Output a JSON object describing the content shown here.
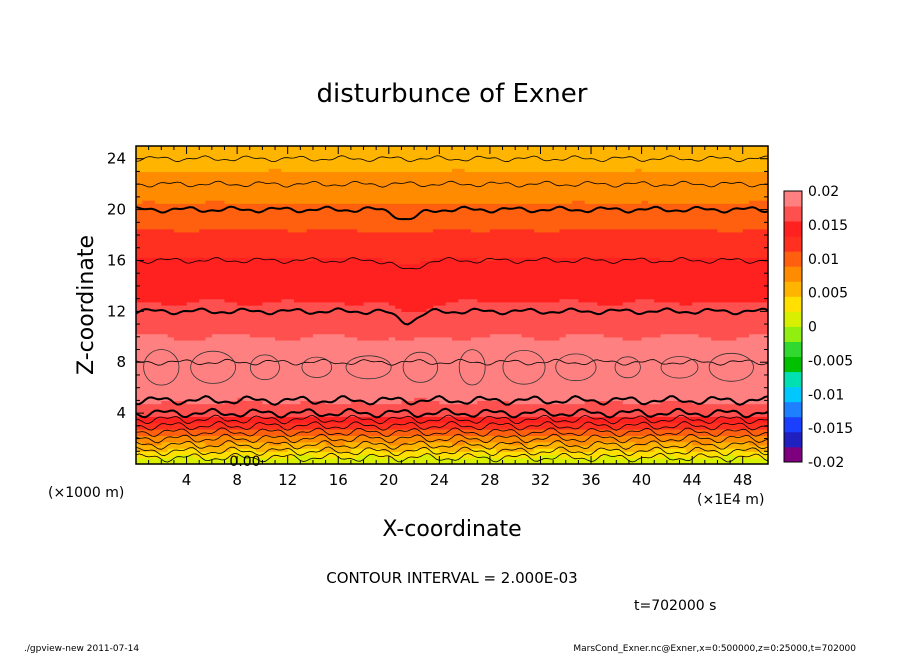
{
  "chart_data": {
    "type": "heatmap",
    "title": "disturbunce of Exner",
    "xlabel": "X-coordinate",
    "ylabel": "Z-coordinate",
    "x_unit": "(×1E4 m)",
    "y_unit": "(×1000 m)",
    "xlim": [
      0,
      50
    ],
    "ylim": [
      0,
      25
    ],
    "x_ticks": [
      "4",
      "8",
      "12",
      "16",
      "20",
      "24",
      "28",
      "32",
      "36",
      "40",
      "44",
      "48"
    ],
    "y_ticks": [
      "4",
      "8",
      "12",
      "16",
      "20",
      "24"
    ],
    "contour_interval_text": "CONTOUR INTERVAL = 2.000E-03",
    "time_text": "t=702000 s",
    "contour_label": "0.00",
    "colorbar": {
      "labels": [
        "0.02",
        "0.015",
        "0.01",
        "0.005",
        "0",
        "-0.005",
        "-0.01",
        "-0.015",
        "-0.02"
      ],
      "range": [
        -0.02,
        0.02
      ],
      "colors": [
        "#7f007f",
        "#2020c0",
        "#1a3fff",
        "#1e7fff",
        "#00c8ff",
        "#00e0b0",
        "#00c000",
        "#30d830",
        "#90ee10",
        "#d8f000",
        "#ffe000",
        "#ffb400",
        "#ff8c00",
        "#ff6010",
        "#ff3020",
        "#ff2020",
        "#ff5050",
        "#ff8080"
      ]
    },
    "profile": {
      "z": [
        0,
        1,
        2,
        3,
        4,
        5,
        6,
        7,
        8,
        9,
        10,
        12,
        14,
        16,
        18,
        20,
        22,
        24,
        25
      ],
      "value": [
        0.0,
        0.004,
        0.008,
        0.012,
        0.0165,
        0.018,
        0.019,
        0.0195,
        0.0195,
        0.019,
        0.0178,
        0.016,
        0.0148,
        0.0135,
        0.0115,
        0.0095,
        0.0075,
        0.006,
        0.0055
      ]
    }
  },
  "footer": {
    "left": "./gpview-new   2011-07-14",
    "right": "MarsCond_Exner.nc@Exner,x=0:500000,z=0:25000,t=702000"
  }
}
